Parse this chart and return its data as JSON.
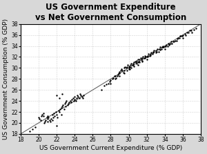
{
  "title": "US Government Expenditure\nvs Net Government Consumption",
  "xlabel": "US Government Current Expenditure (% GDP)",
  "ylabel": "US Government Consumption (% GDP)",
  "xlim": [
    18,
    38
  ],
  "ylim": [
    18,
    38
  ],
  "xticks": [
    18,
    20,
    22,
    24,
    26,
    28,
    30,
    32,
    34,
    36,
    38
  ],
  "yticks": [
    18,
    20,
    22,
    24,
    26,
    28,
    30,
    32,
    34,
    36,
    38
  ],
  "diag_line": [
    17,
    39
  ],
  "background_color": "#ffffff",
  "fig_background_color": "#d8d8d8",
  "grid_color": "#aaaaaa",
  "scatter_color": "#000000",
  "line_color": "#666666",
  "title_fontsize": 8.5,
  "label_fontsize": 6.5,
  "tick_fontsize": 5.5,
  "scatter_size": 3,
  "scatter_points": [
    [
      19.0,
      18.5
    ],
    [
      19.3,
      18.9
    ],
    [
      19.6,
      19.2
    ],
    [
      20.0,
      21.0
    ],
    [
      20.1,
      20.8
    ],
    [
      20.2,
      20.5
    ],
    [
      20.3,
      21.3
    ],
    [
      20.4,
      21.5
    ],
    [
      20.5,
      21.8
    ],
    [
      20.5,
      21.2
    ],
    [
      20.6,
      20.0
    ],
    [
      20.7,
      20.2
    ],
    [
      20.8,
      20.5
    ],
    [
      20.9,
      21.0
    ],
    [
      21.0,
      20.3
    ],
    [
      21.0,
      20.8
    ],
    [
      21.0,
      21.3
    ],
    [
      21.1,
      21.0
    ],
    [
      21.2,
      20.5
    ],
    [
      21.3,
      20.2
    ],
    [
      21.4,
      20.8
    ],
    [
      21.5,
      20.5
    ],
    [
      21.5,
      21.5
    ],
    [
      21.6,
      21.0
    ],
    [
      21.7,
      21.8
    ],
    [
      21.8,
      21.3
    ],
    [
      21.9,
      22.0
    ],
    [
      22.0,
      19.5
    ],
    [
      22.0,
      21.5
    ],
    [
      22.1,
      21.0
    ],
    [
      22.2,
      22.3
    ],
    [
      22.3,
      22.0
    ],
    [
      22.4,
      22.5
    ],
    [
      22.5,
      21.5
    ],
    [
      22.5,
      22.8
    ],
    [
      22.6,
      23.0
    ],
    [
      22.7,
      23.3
    ],
    [
      22.8,
      22.5
    ],
    [
      22.9,
      23.5
    ],
    [
      23.0,
      23.0
    ],
    [
      23.0,
      23.8
    ],
    [
      23.1,
      24.0
    ],
    [
      23.2,
      23.3
    ],
    [
      23.3,
      23.5
    ],
    [
      23.4,
      23.8
    ],
    [
      23.5,
      24.0
    ],
    [
      23.6,
      23.8
    ],
    [
      23.7,
      24.3
    ],
    [
      23.8,
      24.5
    ],
    [
      23.9,
      24.0
    ],
    [
      24.0,
      24.3
    ],
    [
      24.0,
      24.8
    ],
    [
      24.1,
      24.0
    ],
    [
      24.2,
      24.5
    ],
    [
      24.3,
      25.0
    ],
    [
      24.4,
      24.8
    ],
    [
      24.5,
      24.5
    ],
    [
      24.6,
      25.3
    ],
    [
      24.7,
      25.0
    ],
    [
      24.8,
      24.8
    ],
    [
      24.9,
      24.5
    ],
    [
      25.0,
      25.0
    ],
    [
      22.0,
      25.0
    ],
    [
      22.3,
      24.5
    ],
    [
      22.6,
      25.3
    ],
    [
      27.0,
      26.0
    ],
    [
      27.3,
      26.8
    ],
    [
      27.5,
      27.0
    ],
    [
      27.7,
      27.2
    ],
    [
      27.9,
      27.5
    ],
    [
      28.0,
      27.2
    ],
    [
      28.0,
      27.8
    ],
    [
      28.2,
      28.0
    ],
    [
      28.3,
      28.2
    ],
    [
      28.4,
      28.5
    ],
    [
      28.5,
      28.0
    ],
    [
      28.5,
      28.5
    ],
    [
      28.6,
      28.2
    ],
    [
      28.7,
      28.5
    ],
    [
      28.8,
      28.8
    ],
    [
      28.9,
      29.0
    ],
    [
      29.0,
      28.5
    ],
    [
      29.0,
      29.0
    ],
    [
      29.0,
      29.3
    ],
    [
      29.1,
      29.5
    ],
    [
      29.2,
      29.8
    ],
    [
      29.3,
      29.5
    ],
    [
      29.4,
      29.2
    ],
    [
      29.5,
      29.5
    ],
    [
      29.5,
      30.0
    ],
    [
      29.6,
      30.2
    ],
    [
      29.7,
      30.0
    ],
    [
      29.8,
      30.2
    ],
    [
      29.9,
      30.5
    ],
    [
      30.0,
      29.8
    ],
    [
      30.0,
      30.0
    ],
    [
      30.0,
      30.3
    ],
    [
      30.1,
      30.2
    ],
    [
      30.2,
      30.5
    ],
    [
      30.3,
      30.8
    ],
    [
      30.4,
      30.5
    ],
    [
      30.5,
      30.5
    ],
    [
      30.5,
      30.8
    ],
    [
      30.6,
      31.0
    ],
    [
      30.7,
      31.2
    ],
    [
      30.8,
      31.0
    ],
    [
      30.9,
      31.3
    ],
    [
      31.0,
      30.5
    ],
    [
      31.0,
      31.0
    ],
    [
      31.0,
      31.5
    ],
    [
      31.1,
      31.2
    ],
    [
      31.2,
      31.5
    ],
    [
      31.3,
      31.8
    ],
    [
      31.4,
      31.5
    ],
    [
      31.5,
      31.2
    ],
    [
      31.5,
      31.8
    ],
    [
      31.6,
      32.0
    ],
    [
      31.7,
      31.8
    ],
    [
      31.8,
      32.2
    ],
    [
      31.9,
      32.0
    ],
    [
      32.0,
      31.5
    ],
    [
      32.0,
      32.0
    ],
    [
      32.1,
      32.2
    ],
    [
      32.2,
      32.5
    ],
    [
      32.3,
      32.2
    ],
    [
      32.4,
      32.5
    ],
    [
      32.5,
      32.8
    ],
    [
      32.6,
      32.5
    ],
    [
      32.7,
      33.0
    ],
    [
      32.8,
      33.2
    ],
    [
      33.0,
      32.8
    ],
    [
      33.0,
      33.2
    ],
    [
      33.2,
      33.5
    ],
    [
      33.3,
      33.0
    ],
    [
      33.4,
      33.5
    ],
    [
      33.5,
      33.8
    ],
    [
      33.6,
      33.5
    ],
    [
      33.7,
      33.8
    ],
    [
      33.8,
      34.0
    ],
    [
      33.9,
      33.8
    ],
    [
      34.0,
      33.5
    ],
    [
      34.0,
      34.0
    ],
    [
      34.2,
      34.2
    ],
    [
      34.3,
      34.0
    ],
    [
      34.4,
      34.5
    ],
    [
      34.5,
      34.2
    ],
    [
      34.6,
      34.5
    ],
    [
      34.7,
      34.8
    ],
    [
      34.8,
      34.5
    ],
    [
      35.0,
      34.8
    ],
    [
      35.2,
      35.0
    ],
    [
      35.4,
      35.3
    ],
    [
      35.5,
      35.5
    ],
    [
      35.7,
      35.8
    ],
    [
      35.8,
      35.8
    ],
    [
      36.0,
      35.5
    ],
    [
      36.0,
      36.0
    ],
    [
      36.2,
      36.2
    ],
    [
      36.5,
      36.5
    ],
    [
      36.8,
      36.8
    ],
    [
      37.0,
      36.5
    ],
    [
      37.2,
      37.0
    ],
    [
      37.5,
      37.2
    ],
    [
      29.5,
      29.0
    ],
    [
      29.8,
      29.5
    ],
    [
      30.1,
      29.8
    ],
    [
      30.3,
      30.0
    ],
    [
      30.6,
      30.3
    ],
    [
      30.9,
      30.8
    ],
    [
      31.2,
      31.0
    ],
    [
      31.5,
      31.3
    ],
    [
      31.8,
      31.8
    ],
    [
      32.1,
      32.0
    ],
    [
      32.4,
      32.3
    ],
    [
      32.7,
      32.8
    ],
    [
      33.1,
      33.0
    ],
    [
      33.5,
      33.3
    ],
    [
      33.8,
      33.8
    ],
    [
      34.1,
      34.0
    ],
    [
      34.5,
      34.3
    ],
    [
      34.9,
      34.8
    ],
    [
      35.3,
      35.0
    ],
    [
      35.6,
      35.5
    ],
    [
      35.9,
      35.8
    ],
    [
      36.3,
      36.0
    ],
    [
      36.6,
      36.5
    ],
    [
      36.9,
      36.8
    ]
  ]
}
